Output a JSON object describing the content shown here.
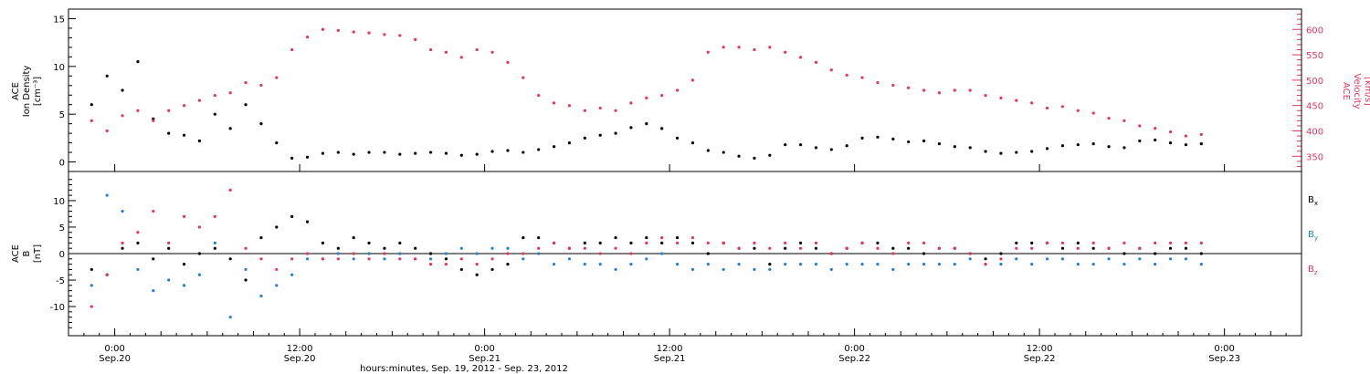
{
  "colors": {
    "density": "#000000",
    "velocity": "#e8335f",
    "bx": "#000000",
    "by": "#1e7fe0",
    "bz": "#e8335f"
  },
  "chart_data": [
    {
      "type": "scatter",
      "ylabel_left": [
        "ACE",
        "Ion Density",
        "[cm⁻³]"
      ],
      "ylabel_right": [
        "ACE",
        "Velocity",
        "[km/s]"
      ],
      "xlim": [
        -3,
        77
      ],
      "ylim_left": [
        -1,
        16
      ],
      "ylim_right": [
        320,
        640
      ],
      "yticks_left": [
        "0",
        "5",
        "10",
        "15"
      ],
      "yticks_right": [
        "350",
        "400",
        "450",
        "500",
        "550",
        "600"
      ],
      "grid": false,
      "series": [
        {
          "name": "",
          "axis": "left",
          "x": [
            -1.5,
            -0.5,
            0.5,
            1.5,
            2.5,
            3.5,
            4.5,
            5.5,
            6.5,
            7.5,
            8.5,
            9.5,
            10.5,
            11.5,
            12.5,
            13.5,
            14.5,
            15.5,
            16.5,
            17.5,
            18.5,
            19.5,
            20.5,
            21.5,
            22.5,
            23.5,
            24.5,
            25.5,
            26.5,
            27.5,
            28.5,
            29.5,
            30.5,
            31.5,
            32.5,
            33.5,
            34.5,
            35.5,
            36.5,
            37.5,
            38.5,
            39.5,
            40.5,
            41.5,
            42.5,
            43.5,
            44.5,
            45.5,
            46.5,
            47.5,
            48.5,
            49.5,
            50.5,
            51.5,
            52.5,
            53.5,
            54.5,
            55.5,
            56.5,
            57.5,
            58.5,
            59.5,
            60.5,
            61.5,
            62.5,
            63.5,
            64.5,
            65.5,
            66.5,
            67.5,
            68.5,
            69.5,
            70.5
          ],
          "y": [
            6.0,
            9.0,
            7.5,
            10.5,
            4.5,
            3.0,
            2.8,
            2.2,
            5.0,
            3.5,
            6.0,
            4.0,
            2.0,
            0.4,
            0.5,
            0.9,
            1.0,
            0.8,
            1.0,
            1.0,
            0.8,
            0.9,
            1.0,
            0.9,
            0.7,
            0.8,
            1.1,
            1.2,
            1.0,
            1.3,
            1.6,
            2.0,
            2.5,
            2.8,
            3.0,
            3.6,
            4.0,
            3.5,
            2.5,
            2.0,
            1.2,
            1.0,
            0.6,
            0.4,
            0.7,
            1.8,
            1.8,
            1.5,
            1.3,
            1.7,
            2.5,
            2.6,
            2.4,
            2.1,
            2.2,
            1.9,
            1.6,
            1.5,
            1.1,
            0.9,
            1.0,
            1.1,
            1.4,
            1.7,
            1.8,
            1.9,
            1.6,
            1.5,
            2.2,
            2.3,
            2.0,
            1.8,
            1.9
          ]
        },
        {
          "name": "",
          "axis": "right",
          "x": [
            -1.5,
            -0.5,
            0.5,
            1.5,
            2.5,
            3.5,
            4.5,
            5.5,
            6.5,
            7.5,
            8.5,
            9.5,
            10.5,
            11.5,
            12.5,
            13.5,
            14.5,
            15.5,
            16.5,
            17.5,
            18.5,
            19.5,
            20.5,
            21.5,
            22.5,
            23.5,
            24.5,
            25.5,
            26.5,
            27.5,
            28.5,
            29.5,
            30.5,
            31.5,
            32.5,
            33.5,
            34.5,
            35.5,
            36.5,
            37.5,
            38.5,
            39.5,
            40.5,
            41.5,
            42.5,
            43.5,
            44.5,
            45.5,
            46.5,
            47.5,
            48.5,
            49.5,
            50.5,
            51.5,
            52.5,
            53.5,
            54.5,
            55.5,
            56.5,
            57.5,
            58.5,
            59.5,
            60.5,
            61.5,
            62.5,
            63.5,
            64.5,
            65.5,
            66.5,
            67.5,
            68.5,
            69.5,
            70.5
          ],
          "y": [
            420,
            400,
            430,
            440,
            420,
            440,
            450,
            460,
            470,
            475,
            495,
            490,
            505,
            560,
            585,
            600,
            598,
            595,
            593,
            590,
            588,
            580,
            560,
            555,
            545,
            560,
            555,
            535,
            505,
            470,
            455,
            450,
            440,
            445,
            440,
            455,
            465,
            470,
            480,
            500,
            555,
            565,
            565,
            560,
            565,
            555,
            545,
            535,
            520,
            510,
            505,
            495,
            490,
            485,
            480,
            475,
            480,
            480,
            470,
            465,
            460,
            455,
            445,
            448,
            440,
            435,
            425,
            420,
            410,
            405,
            398,
            390,
            393
          ]
        }
      ]
    },
    {
      "type": "scatter",
      "ylabel_left": [
        "ACE",
        "B",
        "[nT]"
      ],
      "xlim": [
        -3,
        77
      ],
      "ylim": [
        -15.5,
        15.5
      ],
      "yticks": [
        "-10",
        "-5",
        "0",
        "5",
        "10"
      ],
      "zero_line": true,
      "grid": false,
      "xticks": [
        {
          "x": 0,
          "time": "0:00",
          "date": "Sep.20"
        },
        {
          "x": 12,
          "time": "12:00",
          "date": "Sep.20"
        },
        {
          "x": 24,
          "time": "0:00",
          "date": "Sep.21"
        },
        {
          "x": 36,
          "time": "12:00",
          "date": "Sep.21"
        },
        {
          "x": 48,
          "time": "0:00",
          "date": "Sep.22"
        },
        {
          "x": 60,
          "time": "12:00",
          "date": "Sep.22"
        },
        {
          "x": 72,
          "time": "0:00",
          "date": "Sep.23"
        }
      ],
      "xlabel": "hours:minutes, Sep. 19, 2012 - Sep. 23, 2012",
      "legend_position": "right",
      "series": [
        {
          "name": "Bx",
          "label_main": "B",
          "label_sub": "x",
          "x": [
            -1.5,
            -0.5,
            0.5,
            1.5,
            2.5,
            3.5,
            4.5,
            5.5,
            6.5,
            7.5,
            8.5,
            9.5,
            10.5,
            11.5,
            12.5,
            13.5,
            14.5,
            15.5,
            16.5,
            17.5,
            18.5,
            19.5,
            20.5,
            21.5,
            22.5,
            23.5,
            24.5,
            25.5,
            26.5,
            27.5,
            28.5,
            29.5,
            30.5,
            31.5,
            32.5,
            33.5,
            34.5,
            35.5,
            36.5,
            37.5,
            38.5,
            39.5,
            40.5,
            41.5,
            42.5,
            43.5,
            44.5,
            45.5,
            46.5,
            47.5,
            48.5,
            49.5,
            50.5,
            51.5,
            52.5,
            53.5,
            54.5,
            55.5,
            56.5,
            57.5,
            58.5,
            59.5,
            60.5,
            61.5,
            62.5,
            63.5,
            64.5,
            65.5,
            66.5,
            67.5,
            68.5,
            69.5,
            70.5
          ],
          "y": [
            -3,
            -4,
            1,
            2,
            -1,
            1,
            -2,
            0,
            1,
            -1,
            -5,
            3,
            5,
            7,
            6,
            2,
            1,
            3,
            2,
            1,
            2,
            1,
            0,
            -1,
            -3,
            -4,
            -3,
            -2,
            3,
            3,
            2,
            1,
            2,
            2,
            3,
            2,
            3,
            2,
            3,
            2,
            0,
            2,
            1,
            1,
            -2,
            1,
            2,
            1,
            0,
            1,
            2,
            2,
            1,
            1,
            0,
            1,
            1,
            0,
            -1,
            0,
            2,
            2,
            2,
            1,
            2,
            1,
            1,
            0,
            1,
            0,
            1,
            1,
            0
          ]
        },
        {
          "name": "By",
          "label_main": "B",
          "label_sub": "y",
          "x": [
            -1.5,
            -0.5,
            0.5,
            1.5,
            2.5,
            3.5,
            4.5,
            5.5,
            6.5,
            7.5,
            8.5,
            9.5,
            10.5,
            11.5,
            12.5,
            13.5,
            14.5,
            15.5,
            16.5,
            17.5,
            18.5,
            19.5,
            20.5,
            21.5,
            22.5,
            23.5,
            24.5,
            25.5,
            26.5,
            27.5,
            28.5,
            29.5,
            30.5,
            31.5,
            32.5,
            33.5,
            34.5,
            35.5,
            36.5,
            37.5,
            38.5,
            39.5,
            40.5,
            41.5,
            42.5,
            43.5,
            44.5,
            45.5,
            46.5,
            47.5,
            48.5,
            49.5,
            50.5,
            51.5,
            52.5,
            53.5,
            54.5,
            55.5,
            56.5,
            57.5,
            58.5,
            59.5,
            60.5,
            61.5,
            62.5,
            63.5,
            64.5,
            65.5,
            66.5,
            67.5,
            68.5,
            69.5,
            70.5
          ],
          "y": [
            -6,
            11,
            8,
            -3,
            -7,
            -5,
            -6,
            -4,
            2,
            -12,
            -3,
            -8,
            -6,
            -4,
            -1,
            -1,
            0,
            -1,
            0,
            -1,
            0,
            -1,
            -1,
            0,
            1,
            0,
            1,
            1,
            -1,
            0,
            -2,
            -1,
            -2,
            -2,
            -3,
            -2,
            -1,
            0,
            -2,
            -3,
            -2,
            -3,
            -2,
            -3,
            -3,
            -2,
            -2,
            -2,
            -3,
            -2,
            -2,
            -2,
            -3,
            -2,
            -2,
            -2,
            -2,
            -1,
            -2,
            -2,
            -1,
            -2,
            -1,
            -1,
            -2,
            -2,
            -1,
            -2,
            -1,
            -2,
            -1,
            -1,
            -2
          ]
        },
        {
          "name": "Bz",
          "label_main": "B",
          "label_sub": "z",
          "x": [
            -1.5,
            -0.5,
            0.5,
            1.5,
            2.5,
            3.5,
            4.5,
            5.5,
            6.5,
            7.5,
            8.5,
            9.5,
            10.5,
            11.5,
            12.5,
            13.5,
            14.5,
            15.5,
            16.5,
            17.5,
            18.5,
            19.5,
            20.5,
            21.5,
            22.5,
            23.5,
            24.5,
            25.5,
            26.5,
            27.5,
            28.5,
            29.5,
            30.5,
            31.5,
            32.5,
            33.5,
            34.5,
            35.5,
            36.5,
            37.5,
            38.5,
            39.5,
            40.5,
            41.5,
            42.5,
            43.5,
            44.5,
            45.5,
            46.5,
            47.5,
            48.5,
            49.5,
            50.5,
            51.5,
            52.5,
            53.5,
            54.5,
            55.5,
            56.5,
            57.5,
            58.5,
            59.5,
            60.5,
            61.5,
            62.5,
            63.5,
            64.5,
            65.5,
            66.5,
            67.5,
            68.5,
            69.5,
            70.5
          ],
          "y": [
            -10,
            -4,
            2,
            4,
            8,
            2,
            7,
            5,
            7,
            12,
            1,
            -1,
            -3,
            -1,
            0,
            -1,
            -1,
            0,
            -1,
            0,
            -1,
            -1,
            -2,
            -2,
            -1,
            -2,
            -1,
            0,
            0,
            1,
            2,
            1,
            1,
            0,
            1,
            0,
            2,
            3,
            2,
            3,
            2,
            2,
            1,
            2,
            1,
            2,
            1,
            2,
            0,
            1,
            2,
            1,
            0,
            2,
            2,
            1,
            1,
            0,
            -2,
            -1,
            1,
            1,
            2,
            2,
            1,
            2,
            1,
            2,
            1,
            2,
            2,
            2,
            2
          ]
        }
      ]
    }
  ]
}
